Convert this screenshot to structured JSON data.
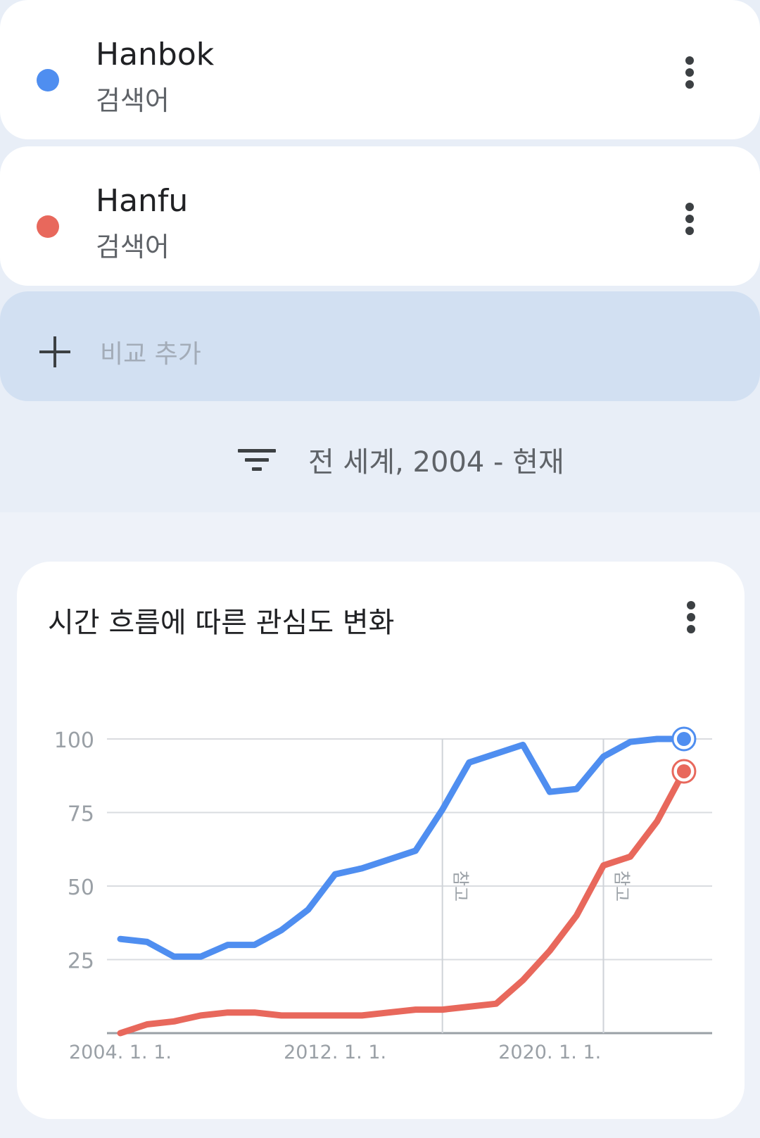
{
  "terms": [
    {
      "name": "Hanbok",
      "sub": "검색어",
      "color": "#4f8ef0",
      "menu_icon": "more-vert-icon"
    },
    {
      "name": "Hanfu",
      "sub": "검색어",
      "color": "#e8685c",
      "menu_icon": "more-vert-icon"
    }
  ],
  "add_compare": {
    "label": "비교 추가",
    "icon": "plus-icon"
  },
  "filter": {
    "label": "전 세계, 2004 - 현재",
    "icon": "filter-icon"
  },
  "chart_card": {
    "title": "시간 흐름에 따른 관심도 변화",
    "menu_icon": "more-vert-icon"
  },
  "chart_data": {
    "type": "line",
    "title": "시간 흐름에 따른 관심도 변화",
    "xlabel": "",
    "ylabel": "",
    "ylim": [
      0,
      100
    ],
    "xlim": [
      2004.0,
      2025.5
    ],
    "y_ticks": [
      "100",
      "75",
      "50",
      "25"
    ],
    "y_tick_values": [
      100,
      75,
      50,
      25
    ],
    "x_ticks": [
      "2004. 1. 1.",
      "2012. 1. 1.",
      "2020. 1. 1."
    ],
    "x_tick_values": [
      2004,
      2012,
      2020
    ],
    "grid": true,
    "legend": "none",
    "annotations": [
      {
        "label": "참고",
        "x": 2016.0
      },
      {
        "label": "참고",
        "x": 2022.0
      }
    ],
    "x": [
      2004,
      2005,
      2006,
      2007,
      2008,
      2009,
      2010,
      2011,
      2012,
      2013,
      2014,
      2015,
      2016,
      2017,
      2018,
      2019,
      2020,
      2021,
      2022,
      2023,
      2024,
      2025
    ],
    "series": [
      {
        "name": "Hanbok",
        "color": "#4f8ef0",
        "values": [
          32,
          31,
          26,
          26,
          30,
          30,
          35,
          42,
          54,
          56,
          59,
          62,
          76,
          92,
          95,
          98,
          82,
          83,
          94,
          99,
          100,
          100
        ]
      },
      {
        "name": "Hanfu",
        "color": "#e8685c",
        "values": [
          0,
          3,
          4,
          6,
          7,
          7,
          6,
          6,
          6,
          6,
          7,
          8,
          8,
          9,
          10,
          18,
          28,
          40,
          57,
          60,
          72,
          89
        ]
      }
    ]
  }
}
